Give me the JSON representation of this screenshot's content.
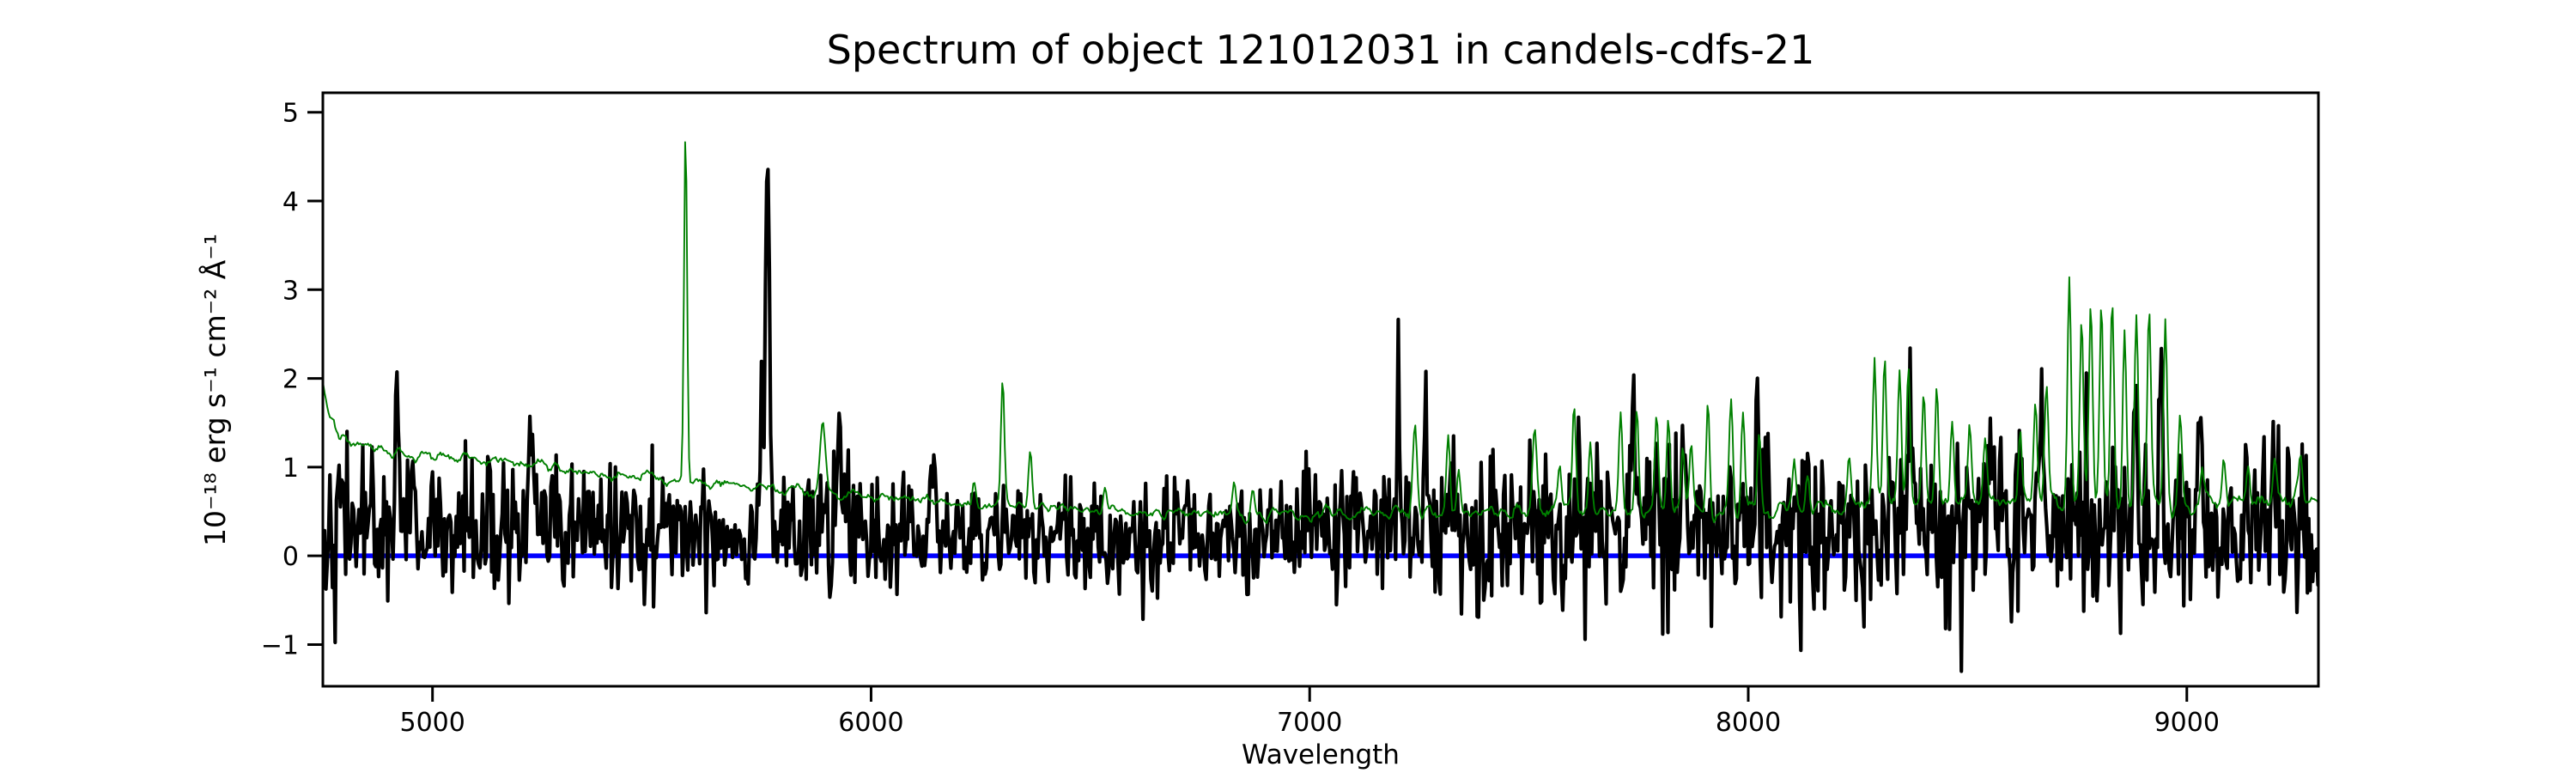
{
  "figure": {
    "background_color": "#ffffff",
    "title": "Spectrum of object 121012031 in candels-cdfs-21"
  },
  "chart_data": {
    "type": "line",
    "title": "Spectrum of object 121012031 in candels-cdfs-21",
    "xlabel": "Wavelength",
    "ylabel": "10⁻¹⁸ erg s⁻¹ cm⁻² Å⁻¹",
    "xlim": [
      4750,
      9300
    ],
    "ylim": [
      -1.47,
      5.22
    ],
    "xticks": [
      5000,
      6000,
      7000,
      8000,
      9000
    ],
    "yticks": [
      -1,
      0,
      1,
      2,
      3,
      4,
      5
    ],
    "grid": false,
    "legend": "none",
    "axis_color": "#000000",
    "notable_peaks": [
      {
        "series": "black_spectrum",
        "wavelength": 5763,
        "value": 4.93
      },
      {
        "series": "green_spectrum",
        "wavelength": 5577,
        "value": 4.83
      },
      {
        "series": "green_spectrum",
        "wavelength": 6300,
        "value": 2.02
      },
      {
        "series": "green_spectrum",
        "wavelength": 6363,
        "value": 1.24
      },
      {
        "series": "green_spectrum",
        "wavelength": 8732,
        "value": 3.16
      },
      {
        "series": "black_spectrum",
        "wavelength": 7202,
        "value": 2.15
      },
      {
        "series": "black_spectrum",
        "wavelength": 7265,
        "value": 2.15
      },
      {
        "series": "black_spectrum",
        "wavelength": 8940,
        "value": 2.27
      }
    ],
    "series": [
      {
        "name": "black_spectrum",
        "role": "object flux (noisy spectrum)",
        "color": "#000000",
        "line_width": 4.2,
        "continuum_anchors": [
          [
            4750,
            0.4
          ],
          [
            5300,
            0.3
          ],
          [
            6000,
            0.25
          ],
          [
            6800,
            0.18
          ],
          [
            7200,
            0.28
          ],
          [
            7700,
            0.32
          ],
          [
            8300,
            0.3
          ],
          [
            9300,
            0.3
          ]
        ],
        "noise_sigma_anchors": [
          [
            4750,
            0.42
          ],
          [
            5600,
            0.36
          ],
          [
            6200,
            0.3
          ],
          [
            6900,
            0.32
          ],
          [
            7200,
            0.42
          ],
          [
            7600,
            0.46
          ],
          [
            8200,
            0.5
          ],
          [
            8800,
            0.52
          ],
          [
            9300,
            0.48
          ]
        ],
        "spikes": [
          [
            4918,
            1.45,
            4
          ],
          [
            5225,
            1.1,
            4
          ],
          [
            5460,
            0.9,
            4
          ],
          [
            5755,
            1.5,
            8
          ],
          [
            5765,
            3.8,
            4
          ],
          [
            5928,
            1.35,
            4
          ],
          [
            6140,
            0.85,
            4
          ],
          [
            7202,
            1.8,
            4
          ],
          [
            7265,
            1.8,
            4
          ],
          [
            7738,
            1.5,
            5
          ],
          [
            7855,
            1.5,
            4
          ],
          [
            8021,
            1.3,
            4
          ],
          [
            8371,
            1.6,
            4
          ],
          [
            8550,
            1.2,
            4
          ],
          [
            8671,
            1.65,
            4
          ],
          [
            8883,
            1.9,
            4
          ],
          [
            8940,
            1.95,
            4
          ],
          [
            9031,
            1.4,
            4
          ],
          [
            9198,
            0.9,
            4
          ],
          [
            5045,
            -0.55,
            4
          ],
          [
            5150,
            -0.6,
            4
          ],
          [
            6640,
            -0.45,
            4
          ],
          [
            6860,
            -0.4,
            4
          ],
          [
            7383,
            -0.7,
            4
          ],
          [
            7709,
            -0.5,
            4
          ],
          [
            8120,
            -0.45,
            4
          ]
        ]
      },
      {
        "name": "green_spectrum",
        "role": "sky / noise spectrum (thin green line)",
        "color": "#008000",
        "line_width": 1.9,
        "continuum_anchors": [
          [
            4750,
            1.95
          ],
          [
            4765,
            1.55
          ],
          [
            4790,
            1.28
          ],
          [
            4900,
            1.18
          ],
          [
            5000,
            1.13
          ],
          [
            5100,
            1.1
          ],
          [
            5250,
            1.02
          ],
          [
            5400,
            0.92
          ],
          [
            5550,
            0.84
          ],
          [
            5700,
            0.8
          ],
          [
            5850,
            0.74
          ],
          [
            6000,
            0.68
          ],
          [
            6150,
            0.6
          ],
          [
            6300,
            0.56
          ],
          [
            6500,
            0.52
          ],
          [
            6700,
            0.47
          ],
          [
            6900,
            0.45
          ],
          [
            7100,
            0.47
          ],
          [
            7300,
            0.48
          ],
          [
            7500,
            0.5
          ],
          [
            7700,
            0.5
          ],
          [
            7900,
            0.52
          ],
          [
            8100,
            0.54
          ],
          [
            8300,
            0.6
          ],
          [
            8500,
            0.6
          ],
          [
            8700,
            0.62
          ],
          [
            8900,
            0.63
          ],
          [
            9000,
            0.58
          ],
          [
            9150,
            0.62
          ],
          [
            9300,
            0.65
          ]
        ],
        "noise_sigma_anchors": [
          [
            4750,
            0.035
          ],
          [
            6500,
            0.03
          ],
          [
            7600,
            0.045
          ],
          [
            9300,
            0.06
          ]
        ],
        "spikes": [
          [
            5577,
            4.0,
            3.5
          ],
          [
            5890,
            0.75,
            6
          ],
          [
            6235,
            0.3,
            4
          ],
          [
            6300,
            1.45,
            4
          ],
          [
            6363,
            0.65,
            4
          ],
          [
            6533,
            0.3,
            4
          ],
          [
            6828,
            0.35,
            4
          ],
          [
            6870,
            0.3,
            4
          ],
          [
            7240,
            1.0,
            5
          ],
          [
            7316,
            0.9,
            4
          ],
          [
            7340,
            0.5,
            4
          ],
          [
            7513,
            0.95,
            5
          ],
          [
            7570,
            0.5,
            4
          ],
          [
            7603,
            1.2,
            4
          ],
          [
            7640,
            0.8,
            4
          ],
          [
            7709,
            1.1,
            4
          ],
          [
            7746,
            1.1,
            4
          ],
          [
            7791,
            1.0,
            4
          ],
          [
            7818,
            1.0,
            4
          ],
          [
            7851,
            0.75,
            4
          ],
          [
            7870,
            0.7,
            4
          ],
          [
            7908,
            1.25,
            4
          ],
          [
            7961,
            1.15,
            4
          ],
          [
            7988,
            1.1,
            4
          ],
          [
            8025,
            0.9,
            4
          ],
          [
            8105,
            0.5,
            4
          ],
          [
            8135,
            0.4,
            4
          ],
          [
            8230,
            0.6,
            4
          ],
          [
            8288,
            1.55,
            4
          ],
          [
            8311,
            1.6,
            4
          ],
          [
            8345,
            1.45,
            4
          ],
          [
            8365,
            1.5,
            4
          ],
          [
            8400,
            1.2,
            4
          ],
          [
            8430,
            1.4,
            4
          ],
          [
            8465,
            1.0,
            4
          ],
          [
            8505,
            0.85,
            4
          ],
          [
            8540,
            0.6,
            4
          ],
          [
            8620,
            0.85,
            4
          ],
          [
            8655,
            1.05,
            4
          ],
          [
            8680,
            1.3,
            4
          ],
          [
            8732,
            2.5,
            4
          ],
          [
            8760,
            2.0,
            4
          ],
          [
            8781,
            2.2,
            4
          ],
          [
            8805,
            2.25,
            4
          ],
          [
            8830,
            2.2,
            4
          ],
          [
            8858,
            2.0,
            4
          ],
          [
            8885,
            2.05,
            4
          ],
          [
            8914,
            2.1,
            4
          ],
          [
            8951,
            2.05,
            4
          ],
          [
            8985,
            1.0,
            4
          ],
          [
            9035,
            0.5,
            4
          ],
          [
            9085,
            0.45,
            4
          ],
          [
            9140,
            0.4,
            4
          ],
          [
            9200,
            0.45,
            4
          ],
          [
            9260,
            0.4,
            4
          ]
        ]
      },
      {
        "name": "blue_zero_line",
        "role": "horizontal reference line at flux = 0",
        "color": "#0000ff",
        "line_width": 5.5,
        "y": 0
      }
    ],
    "synthesis": {
      "seed": 42,
      "wavelength_step": 3,
      "green_smooth_window": 5
    }
  }
}
